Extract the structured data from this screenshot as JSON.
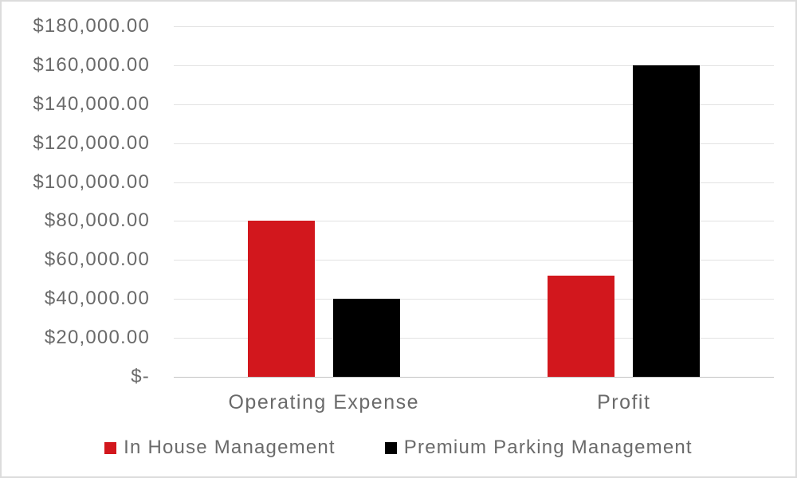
{
  "chart_data": {
    "type": "bar",
    "title": "",
    "xlabel": "",
    "ylabel": "",
    "categories": [
      "Operating Expense",
      "Profit"
    ],
    "series": [
      {
        "name": "In House Management",
        "color": "#d2171d",
        "values": [
          80000,
          52000
        ]
      },
      {
        "name": "Premium Parking Management",
        "color": "#000000",
        "values": [
          40000,
          160000
        ]
      }
    ],
    "ylim": [
      0,
      180000
    ],
    "ytick_step": 20000,
    "ytick_labels": [
      "$-",
      "$20,000.00",
      "$40,000.00",
      "$60,000.00",
      "$80,000.00",
      "$100,000.00",
      "$120,000.00",
      "$140,000.00",
      "$160,000.00",
      "$180,000.00"
    ],
    "grid": true,
    "legend_position": "bottom"
  },
  "style": {
    "text_color": "#6a6a6a",
    "gridline_color": "#e2e2e2",
    "axis_line_color": "#c4c4c4",
    "background": "#ffffff",
    "border_color": "#dcdcdc"
  }
}
